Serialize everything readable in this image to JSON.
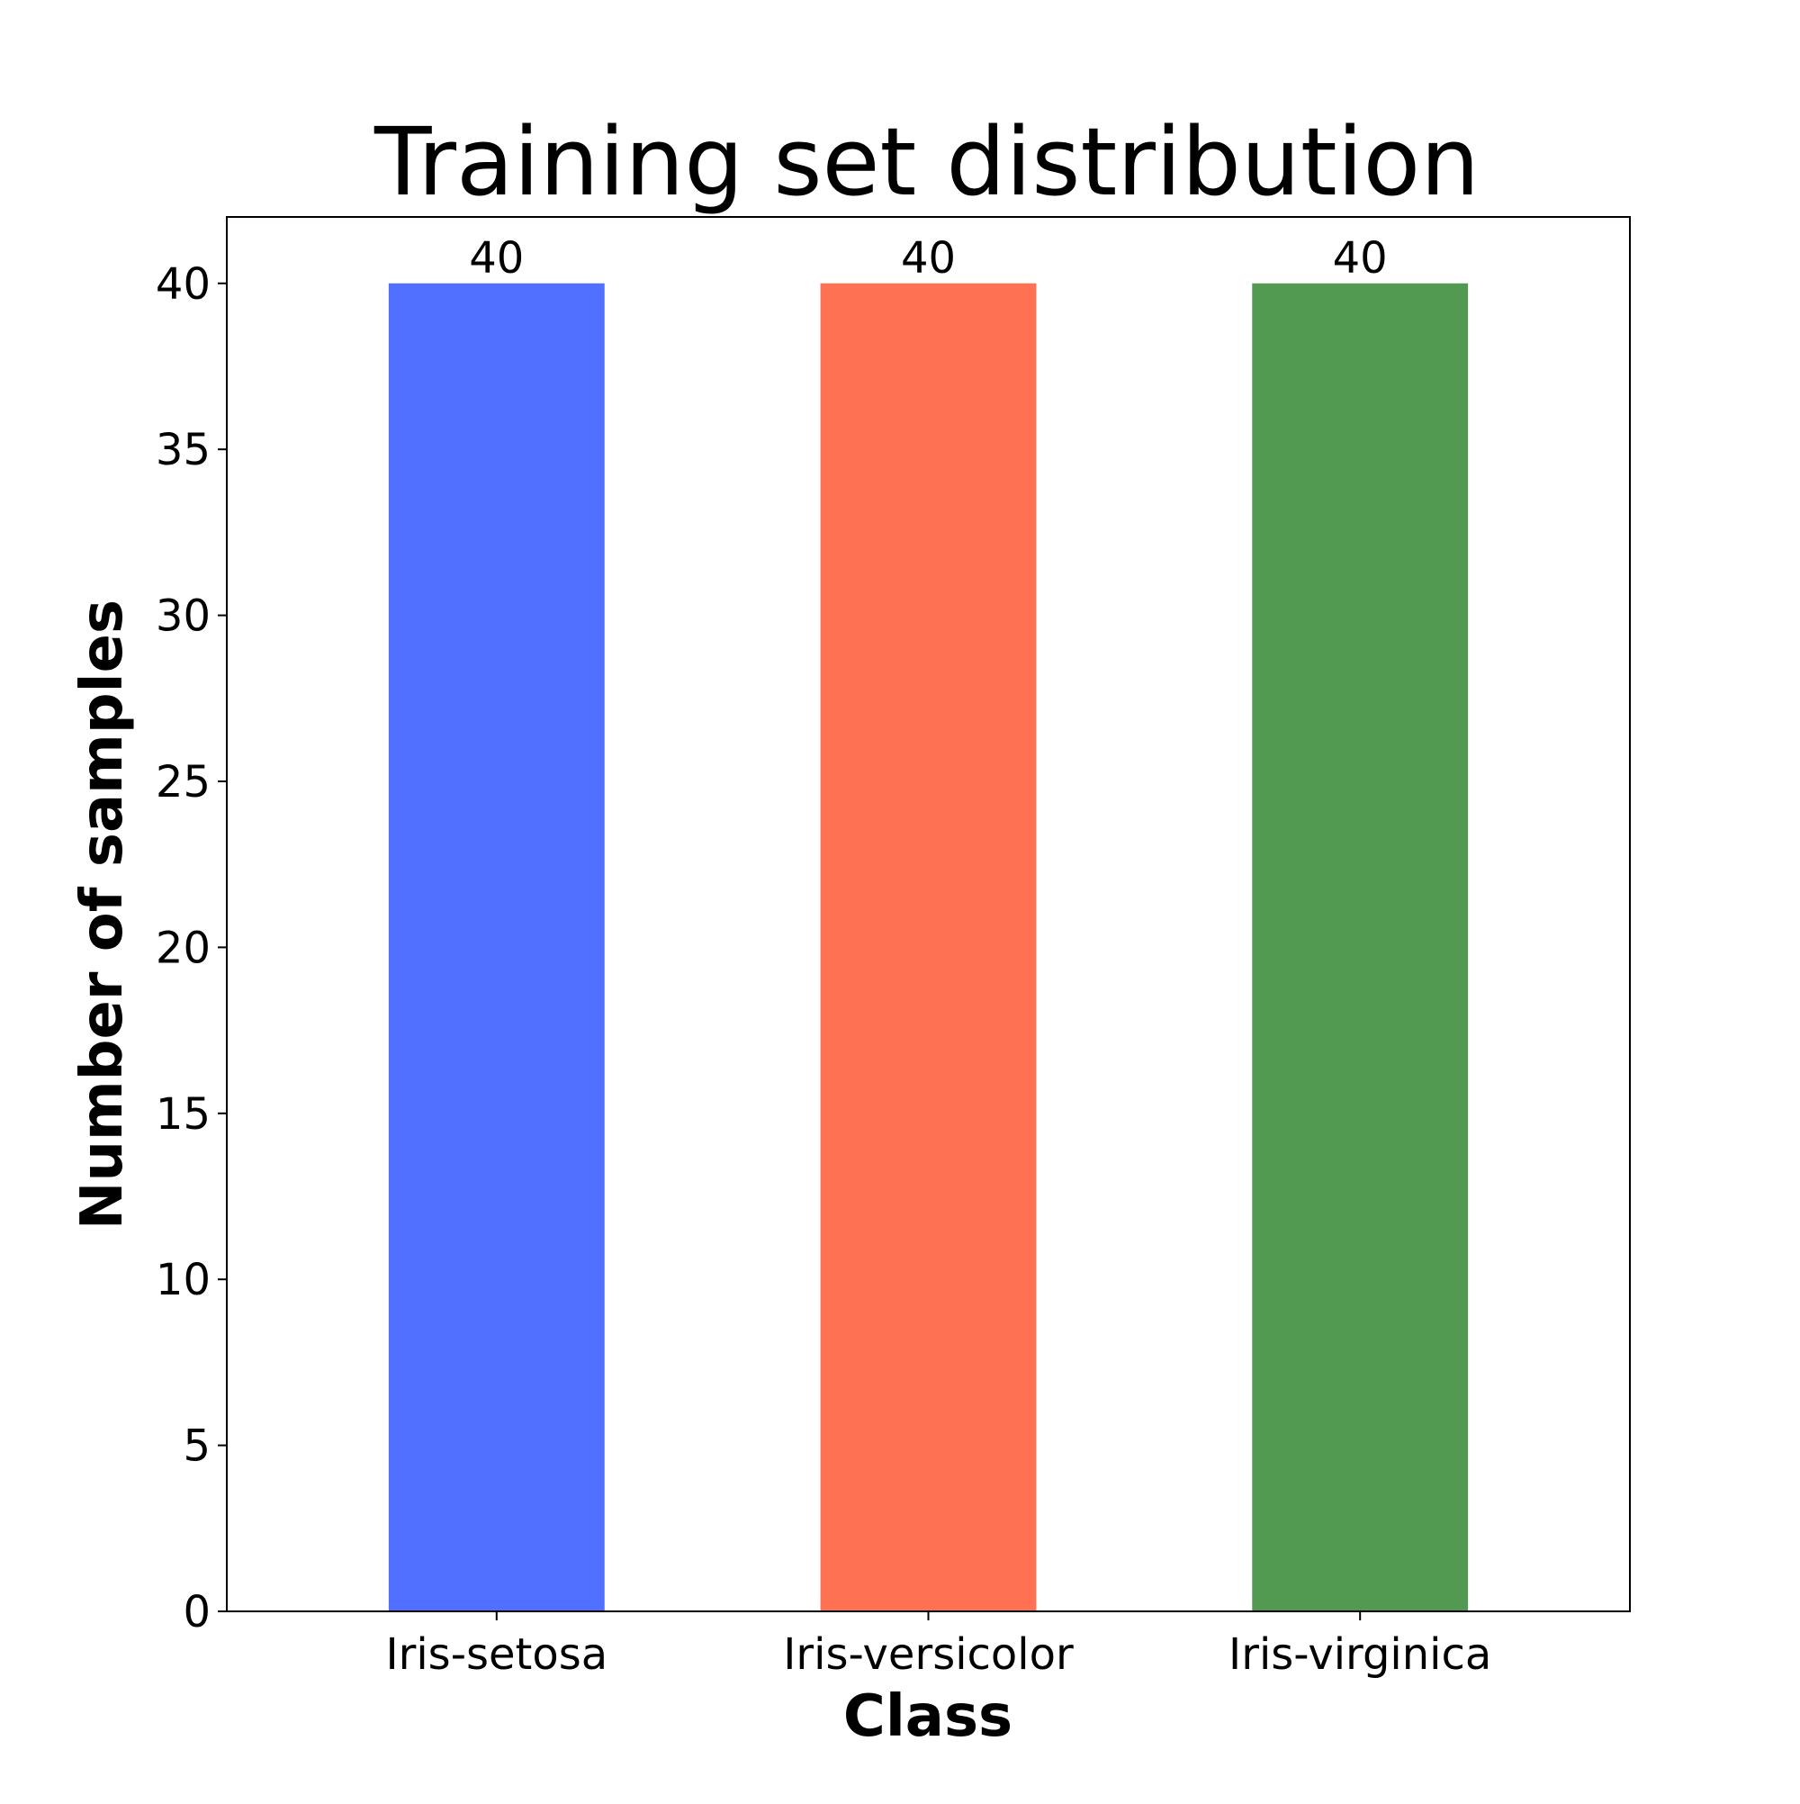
{
  "chart_data": {
    "type": "bar",
    "title": "Training set distribution",
    "xlabel": "Class",
    "ylabel": "Number of samples",
    "categories": [
      "Iris-setosa",
      "Iris-versicolor",
      "Iris-virginica"
    ],
    "values": [
      40,
      40,
      40
    ],
    "colors": [
      "#5170ff",
      "#ff7152",
      "#529951"
    ],
    "data_labels": [
      "40",
      "40",
      "40"
    ],
    "ylim": [
      0,
      42
    ],
    "yticks": [
      0,
      5,
      10,
      15,
      20,
      25,
      30,
      35,
      40
    ],
    "grid": false,
    "legend": "none"
  }
}
